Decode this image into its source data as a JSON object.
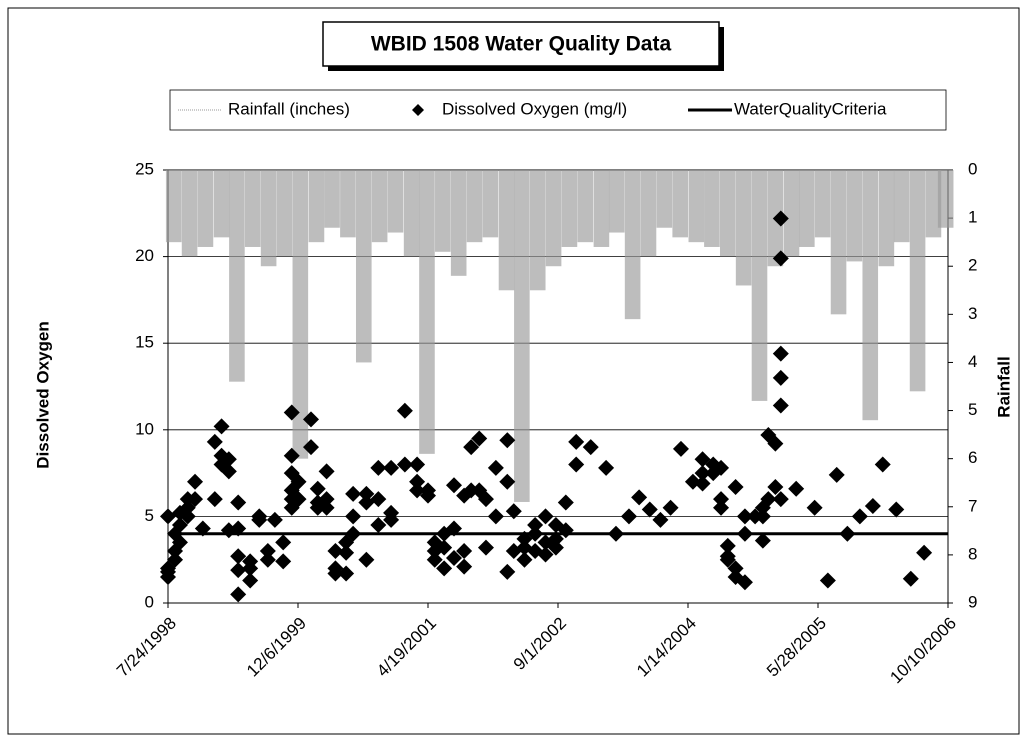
{
  "chart_data": {
    "type": "combo",
    "title": "WBID 1508 Water Quality Data",
    "y_label": "Dissolved Oxygen",
    "y2_label": "Rainfall",
    "xlim": [
      "1998-07-24",
      "2006-10-10"
    ],
    "xticks": [
      {
        "value": "1998-07-24",
        "label": "7/24/1998"
      },
      {
        "value": "1999-12-06",
        "label": "12/6/1999"
      },
      {
        "value": "2001-04-19",
        "label": "4/19/2001"
      },
      {
        "value": "2002-09-01",
        "label": "9/1/2002"
      },
      {
        "value": "2004-01-14",
        "label": "1/14/2004"
      },
      {
        "value": "2005-05-28",
        "label": "5/28/2005"
      },
      {
        "value": "2006-10-10",
        "label": "10/10/2006"
      }
    ],
    "ylim": [
      0,
      25
    ],
    "yticks": [
      0,
      5,
      10,
      15,
      20,
      25
    ],
    "y2lim": [
      0,
      9
    ],
    "y2ticks": [
      0,
      1,
      2,
      3,
      4,
      5,
      6,
      7,
      8,
      9
    ],
    "y2_inverted": true,
    "grid": true,
    "series": [
      {
        "name": "Rainfall (inches)",
        "type": "bar",
        "axis": "y2",
        "color": "#9a9a9a",
        "x": [
          "1998-08-15",
          "1998-10-15",
          "1998-12-15",
          "1999-02-15",
          "1999-04-15",
          "1999-06-15",
          "1999-08-15",
          "1999-10-15",
          "1999-12-15",
          "2000-02-15",
          "2000-04-15",
          "2000-06-15",
          "2000-08-15",
          "2000-10-15",
          "2000-12-15",
          "2001-02-15",
          "2001-04-15",
          "2001-06-15",
          "2001-08-15",
          "2001-10-15",
          "2001-12-15",
          "2002-02-15",
          "2002-04-15",
          "2002-06-15",
          "2002-08-15",
          "2002-10-15",
          "2002-12-15",
          "2003-02-15",
          "2003-04-15",
          "2003-06-15",
          "2003-08-15",
          "2003-10-15",
          "2003-12-15",
          "2004-02-15",
          "2004-04-15",
          "2004-06-15",
          "2004-08-15",
          "2004-10-15",
          "2004-12-15",
          "2005-02-15",
          "2005-04-15",
          "2005-06-15",
          "2005-08-15",
          "2005-10-15",
          "2005-12-15",
          "2006-02-15",
          "2006-04-15",
          "2006-06-15",
          "2006-08-15",
          "2006-10-01"
        ],
        "values": [
          1.5,
          1.8,
          1.6,
          1.4,
          4.4,
          1.6,
          2.0,
          1.8,
          6.0,
          1.5,
          1.2,
          1.4,
          4.0,
          1.5,
          1.3,
          1.8,
          5.9,
          1.7,
          2.2,
          1.5,
          1.4,
          2.5,
          6.9,
          2.5,
          2.0,
          1.6,
          1.5,
          1.6,
          1.3,
          3.1,
          1.8,
          1.2,
          1.4,
          1.5,
          1.6,
          1.8,
          2.4,
          4.8,
          2.0,
          1.8,
          1.6,
          1.4,
          3.0,
          1.9,
          5.2,
          2.0,
          1.5,
          4.6,
          1.4,
          1.2
        ]
      },
      {
        "name": "Dissolved Oxygen (mg/l)",
        "type": "scatter",
        "color": "#000000",
        "x": [
          "1998-07-24",
          "1998-07-24",
          "1998-07-24",
          "1998-07-24",
          "1998-08-20",
          "1998-08-20",
          "1998-08-20",
          "1998-09-08",
          "1998-09-08",
          "1998-09-08",
          "1998-10-08",
          "1998-10-08",
          "1998-10-08",
          "1998-11-05",
          "1998-11-05",
          "1998-12-05",
          "1999-01-20",
          "1999-01-20",
          "1999-02-15",
          "1999-02-15",
          "1999-02-15",
          "1999-03-15",
          "1999-03-15",
          "1999-03-15",
          "1999-04-20",
          "1999-04-20",
          "1999-04-20",
          "1999-04-20",
          "1999-04-20",
          "1999-06-05",
          "1999-06-05",
          "1999-06-05",
          "1999-07-10",
          "1999-07-10",
          "1999-08-12",
          "1999-08-12",
          "1999-09-08",
          "1999-10-10",
          "1999-10-10",
          "1999-11-12",
          "1999-11-12",
          "1999-11-12",
          "1999-11-12",
          "1999-11-12",
          "1999-11-12",
          "1999-12-08",
          "1999-12-08",
          "2000-01-25",
          "2000-01-25",
          "2000-02-20",
          "2000-02-20",
          "2000-02-20",
          "2000-03-25",
          "2000-03-25",
          "2000-03-25",
          "2000-04-28",
          "2000-04-28",
          "2000-04-28",
          "2000-06-08",
          "2000-06-08",
          "2000-06-08",
          "2000-07-05",
          "2000-07-05",
          "2000-07-05",
          "2000-08-25",
          "2000-08-25",
          "2000-08-25",
          "2000-10-10",
          "2000-10-10",
          "2000-10-10",
          "2000-11-28",
          "2000-11-28",
          "2000-11-28",
          "2001-01-20",
          "2001-01-20",
          "2001-03-08",
          "2001-03-08",
          "2001-03-08",
          "2001-04-19",
          "2001-04-19",
          "2001-05-15",
          "2001-05-15",
          "2001-05-15",
          "2001-06-20",
          "2001-06-20",
          "2001-06-20",
          "2001-07-28",
          "2001-07-28",
          "2001-07-28",
          "2001-09-05",
          "2001-09-05",
          "2001-09-05",
          "2001-10-02",
          "2001-10-02",
          "2001-11-02",
          "2001-11-02",
          "2001-11-28",
          "2001-11-28",
          "2002-01-05",
          "2002-01-05",
          "2002-02-18",
          "2002-02-18",
          "2002-02-18",
          "2002-03-15",
          "2002-03-15",
          "2002-04-25",
          "2002-04-25",
          "2002-04-25",
          "2002-06-05",
          "2002-06-05",
          "2002-06-05",
          "2002-07-15",
          "2002-07-15",
          "2002-07-15",
          "2002-08-24",
          "2002-08-24",
          "2002-08-24",
          "2002-10-01",
          "2002-10-01",
          "2002-11-10",
          "2002-11-10",
          "2003-01-05",
          "2003-03-05",
          "2003-04-12",
          "2003-06-01",
          "2003-07-10",
          "2003-08-20",
          "2003-09-30",
          "2003-11-08",
          "2003-12-18",
          "2004-02-02",
          "2004-03-10",
          "2004-03-10",
          "2004-03-10",
          "2004-04-20",
          "2004-04-20",
          "2004-05-20",
          "2004-05-20",
          "2004-05-20",
          "2004-06-15",
          "2004-06-15",
          "2004-06-15",
          "2004-07-15",
          "2004-07-15",
          "2004-07-15",
          "2004-08-20",
          "2004-08-20",
          "2004-08-20",
          "2004-09-28",
          "2004-10-28",
          "2004-10-28",
          "2004-10-28",
          "2004-11-18",
          "2004-11-18",
          "2004-12-15",
          "2004-12-15",
          "2005-01-05",
          "2005-01-05",
          "2005-01-05",
          "2005-01-05",
          "2005-01-05",
          "2005-01-05",
          "2005-03-05",
          "2005-05-15",
          "2005-07-05",
          "2005-08-08",
          "2005-09-18",
          "2005-11-05",
          "2005-12-25",
          "2006-02-01",
          "2006-03-25",
          "2006-05-20",
          "2006-07-10"
        ],
        "values": [
          1.8,
          1.5,
          5.0,
          2.0,
          2.5,
          3.0,
          4.0,
          4.5,
          5.2,
          3.5,
          5.5,
          6.0,
          5.0,
          7.0,
          6.0,
          4.3,
          9.3,
          6.0,
          10.2,
          8.5,
          8.0,
          8.3,
          7.6,
          4.2,
          5.8,
          4.3,
          2.7,
          1.9,
          0.5,
          2.4,
          1.3,
          2.0,
          5.0,
          4.8,
          3.0,
          2.5,
          4.8,
          3.5,
          2.4,
          11.0,
          8.5,
          7.5,
          6.5,
          6.0,
          5.5,
          7.0,
          6.0,
          10.6,
          9.0,
          6.6,
          5.8,
          5.5,
          7.6,
          6.0,
          5.5,
          3.0,
          1.7,
          2.0,
          3.5,
          1.7,
          2.9,
          6.3,
          5.0,
          4.0,
          5.8,
          2.5,
          6.3,
          7.8,
          4.5,
          6.0,
          7.8,
          5.2,
          4.8,
          11.1,
          8.0,
          7.0,
          8.0,
          6.5,
          6.2,
          6.5,
          3.0,
          2.5,
          3.5,
          2.0,
          3.2,
          4.0,
          6.8,
          4.3,
          2.6,
          6.2,
          2.1,
          3.0,
          9.0,
          6.5,
          9.5,
          6.5,
          3.2,
          6.0,
          7.8,
          5.0,
          9.4,
          7.0,
          1.8,
          5.3,
          3.0,
          3.7,
          2.5,
          3.2,
          3.0,
          4.5,
          4.0,
          2.8,
          3.5,
          5.0,
          4.5,
          3.7,
          3.2,
          5.8,
          4.2,
          9.3,
          8.0,
          9.0,
          7.8,
          4.0,
          5.0,
          6.1,
          5.4,
          4.8,
          5.5,
          8.9,
          7.0,
          8.3,
          7.5,
          6.9,
          8.0,
          7.5,
          7.8,
          5.5,
          6.0,
          2.7,
          2.5,
          3.3,
          6.7,
          2.0,
          1.5,
          1.2,
          5.0,
          4.0,
          5.0,
          3.6,
          5.0,
          5.5,
          9.7,
          6.0,
          9.2,
          6.7,
          22.2,
          19.9,
          14.4,
          13.0,
          11.4,
          6.0,
          6.6,
          5.5,
          1.3,
          7.4,
          4.0,
          5.0,
          5.6,
          8.0,
          5.4,
          1.4,
          2.9
        ]
      },
      {
        "name": "WaterQualityCriteria",
        "type": "line",
        "color": "#000000",
        "x": [
          "1998-07-24",
          "2006-10-10"
        ],
        "values": [
          4,
          4
        ]
      }
    ]
  }
}
